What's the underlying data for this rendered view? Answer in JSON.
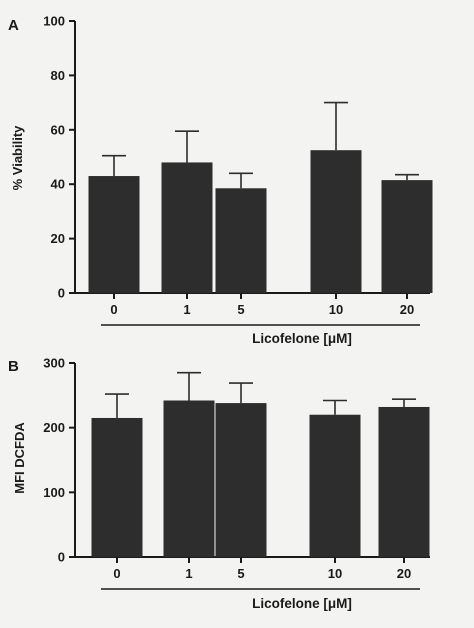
{
  "chart_data": [
    {
      "panel_letter": "A",
      "type": "bar",
      "categories": [
        "0",
        "1",
        "5",
        "10",
        "20"
      ],
      "values": [
        43,
        48,
        38.5,
        52.5,
        41.5
      ],
      "errors": [
        7.5,
        11.5,
        5.5,
        17.5,
        2
      ],
      "ylabel": "% Viability",
      "xlabel": "Licofelone [μM]",
      "ylim": [
        0,
        100
      ],
      "yticks": [
        "0",
        "20",
        "40",
        "60",
        "80",
        "100"
      ],
      "bar_color": "#2d2d2d"
    },
    {
      "panel_letter": "B",
      "type": "bar",
      "categories": [
        "0",
        "1",
        "5",
        "10",
        "20"
      ],
      "values": [
        215,
        242,
        238,
        220,
        232
      ],
      "errors": [
        37,
        43,
        31,
        22,
        12
      ],
      "ylabel": "MFI DCFDA",
      "xlabel": "Licofelone [μM]",
      "ylim": [
        0,
        300
      ],
      "yticks": [
        "0",
        "100",
        "200",
        "300"
      ],
      "bar_color": "#2d2d2d"
    }
  ]
}
